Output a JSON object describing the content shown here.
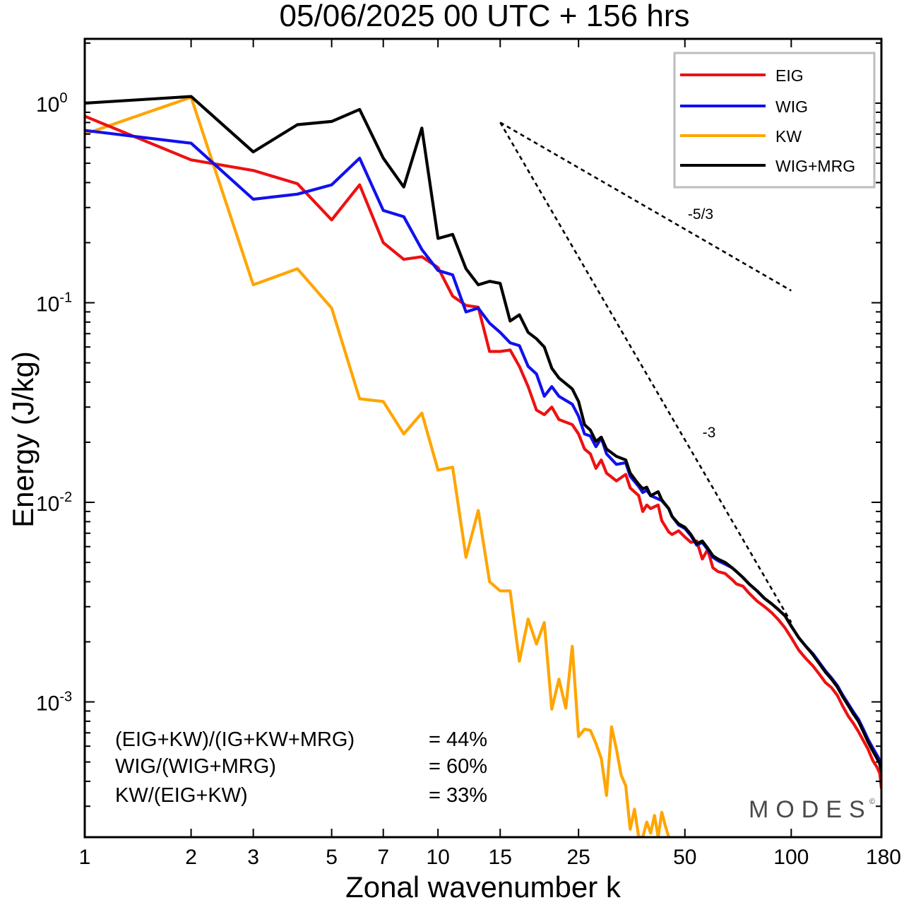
{
  "chart_data": {
    "type": "line",
    "title": "05/06/2025  00 UTC  + 156 hrs",
    "xlabel": "Zonal wavenumber k",
    "ylabel": "Energy (J/kg)",
    "x_scale": "log",
    "y_scale": "log",
    "xlim": [
      1,
      180
    ],
    "ylim": [
      0.00021,
      2.1
    ],
    "x_ticks": [
      {
        "value": 1,
        "label": "1"
      },
      {
        "value": 2,
        "label": "2"
      },
      {
        "value": 3,
        "label": "3"
      },
      {
        "value": 5,
        "label": "5"
      },
      {
        "value": 7,
        "label": "7"
      },
      {
        "value": 10,
        "label": "10"
      },
      {
        "value": 15,
        "label": "15"
      },
      {
        "value": 25,
        "label": "25"
      },
      {
        "value": 50,
        "label": "50"
      },
      {
        "value": 100,
        "label": "100"
      },
      {
        "value": 180,
        "label": "180"
      }
    ],
    "y_ticks": [
      {
        "value": 0.001,
        "base": "10",
        "exp": "-3"
      },
      {
        "value": 0.01,
        "base": "10",
        "exp": "-2"
      },
      {
        "value": 0.1,
        "base": "10",
        "exp": "-1"
      },
      {
        "value": 1,
        "base": "10",
        "exp": "0"
      }
    ],
    "grid": false,
    "legend_position": "top-right",
    "series": [
      {
        "name": "EIG",
        "color": "#ee1111",
        "points": [
          [
            1,
            0.86
          ],
          [
            2,
            0.52
          ],
          [
            3,
            0.46
          ],
          [
            4,
            0.395
          ],
          [
            5,
            0.26
          ],
          [
            6,
            0.39
          ],
          [
            7,
            0.2
          ],
          [
            8,
            0.165
          ],
          [
            9,
            0.17
          ],
          [
            10,
            0.15
          ],
          [
            11,
            0.108
          ],
          [
            12,
            0.097
          ],
          [
            13,
            0.095
          ],
          [
            14,
            0.057
          ],
          [
            15,
            0.057
          ],
          [
            16,
            0.058
          ],
          [
            17,
            0.048
          ],
          [
            18,
            0.038
          ],
          [
            19,
            0.029
          ],
          [
            20,
            0.0275
          ],
          [
            21,
            0.03
          ],
          [
            22,
            0.026
          ],
          [
            24,
            0.0245
          ],
          [
            25,
            0.022
          ],
          [
            26,
            0.0185
          ],
          [
            27,
            0.0175
          ],
          [
            28,
            0.0148
          ],
          [
            29,
            0.0163
          ],
          [
            30,
            0.014
          ],
          [
            32,
            0.0128
          ],
          [
            34,
            0.0138
          ],
          [
            35,
            0.0118
          ],
          [
            37,
            0.0108
          ],
          [
            38,
            0.009
          ],
          [
            39,
            0.0097
          ],
          [
            40,
            0.0093
          ],
          [
            42,
            0.0097
          ],
          [
            43,
            0.0081
          ],
          [
            45,
            0.0071
          ],
          [
            46,
            0.0069
          ],
          [
            48,
            0.0072
          ],
          [
            50,
            0.0067
          ],
          [
            52,
            0.0063
          ],
          [
            54,
            0.0064
          ],
          [
            56,
            0.0052
          ],
          [
            58,
            0.0058
          ],
          [
            60,
            0.0047
          ],
          [
            62,
            0.0045
          ],
          [
            65,
            0.0044
          ],
          [
            68,
            0.0041
          ],
          [
            70,
            0.0039
          ],
          [
            73,
            0.0038
          ],
          [
            76,
            0.0035
          ],
          [
            80,
            0.0032
          ],
          [
            84,
            0.003
          ],
          [
            88,
            0.0028
          ],
          [
            92,
            0.00258
          ],
          [
            96,
            0.00235
          ],
          [
            100,
            0.0021
          ],
          [
            105,
            0.00182
          ],
          [
            110,
            0.00165
          ],
          [
            115,
            0.00152
          ],
          [
            120,
            0.00138
          ],
          [
            125,
            0.00125
          ],
          [
            130,
            0.00118
          ],
          [
            135,
            0.00108
          ],
          [
            140,
            0.00095
          ],
          [
            145,
            0.00085
          ],
          [
            150,
            0.00078
          ],
          [
            155,
            0.00071
          ],
          [
            160,
            0.00064
          ],
          [
            165,
            0.00058
          ],
          [
            170,
            0.00051
          ],
          [
            175,
            0.00047
          ],
          [
            178,
            0.00044
          ],
          [
            180,
            0.00037
          ]
        ]
      },
      {
        "name": "WIG",
        "color": "#1111ee",
        "points": [
          [
            1,
            0.73
          ],
          [
            2,
            0.63
          ],
          [
            3,
            0.33
          ],
          [
            4,
            0.35
          ],
          [
            5,
            0.39
          ],
          [
            6,
            0.53
          ],
          [
            7,
            0.29
          ],
          [
            8,
            0.27
          ],
          [
            9,
            0.185
          ],
          [
            10,
            0.145
          ],
          [
            11,
            0.138
          ],
          [
            12,
            0.09
          ],
          [
            13,
            0.094
          ],
          [
            14,
            0.079
          ],
          [
            15,
            0.071
          ],
          [
            16,
            0.063
          ],
          [
            17,
            0.061
          ],
          [
            18,
            0.048
          ],
          [
            19,
            0.044
          ],
          [
            20,
            0.034
          ],
          [
            21,
            0.038
          ],
          [
            22,
            0.034
          ],
          [
            24,
            0.031
          ],
          [
            25,
            0.027
          ],
          [
            26,
            0.022
          ],
          [
            27,
            0.0215
          ],
          [
            28,
            0.019
          ],
          [
            29,
            0.021
          ],
          [
            30,
            0.0175
          ],
          [
            32,
            0.0155
          ],
          [
            34,
            0.0158
          ],
          [
            35,
            0.0135
          ],
          [
            37,
            0.012
          ],
          [
            38,
            0.0112
          ],
          [
            39,
            0.0115
          ],
          [
            40,
            0.0108
          ],
          [
            42,
            0.0104
          ],
          [
            43,
            0.0102
          ],
          [
            45,
            0.0093
          ],
          [
            46,
            0.0085
          ],
          [
            48,
            0.0077
          ],
          [
            50,
            0.0074
          ],
          [
            52,
            0.0068
          ],
          [
            54,
            0.0061
          ],
          [
            56,
            0.0063
          ],
          [
            58,
            0.0058
          ],
          [
            60,
            0.0053
          ],
          [
            62,
            0.0051
          ],
          [
            65,
            0.0049
          ],
          [
            68,
            0.0047
          ],
          [
            70,
            0.0045
          ],
          [
            73,
            0.0042
          ],
          [
            76,
            0.0039
          ],
          [
            80,
            0.0036
          ],
          [
            84,
            0.0033
          ],
          [
            88,
            0.0031
          ],
          [
            92,
            0.0029
          ],
          [
            96,
            0.0027
          ],
          [
            100,
            0.0024
          ],
          [
            105,
            0.0021
          ],
          [
            110,
            0.0019
          ],
          [
            115,
            0.00175
          ],
          [
            120,
            0.00158
          ],
          [
            125,
            0.00143
          ],
          [
            130,
            0.00132
          ],
          [
            135,
            0.00121
          ],
          [
            140,
            0.00108
          ],
          [
            145,
            0.00098
          ],
          [
            150,
            0.00089
          ],
          [
            155,
            0.00082
          ],
          [
            160,
            0.00073
          ],
          [
            165,
            0.00065
          ],
          [
            170,
            0.00059
          ],
          [
            175,
            0.00054
          ],
          [
            178,
            0.00051
          ],
          [
            180,
            0.00047
          ]
        ]
      },
      {
        "name": "KW",
        "color": "#ffa500",
        "points": [
          [
            1,
            0.7
          ],
          [
            2,
            1.07
          ],
          [
            3,
            0.123
          ],
          [
            4,
            0.148
          ],
          [
            5,
            0.094
          ],
          [
            6,
            0.033
          ],
          [
            7,
            0.032
          ],
          [
            8,
            0.022
          ],
          [
            9,
            0.028
          ],
          [
            10,
            0.0145
          ],
          [
            11,
            0.015
          ],
          [
            12,
            0.0053
          ],
          [
            13,
            0.0091
          ],
          [
            14,
            0.004
          ],
          [
            15,
            0.0036
          ],
          [
            16,
            0.0036
          ],
          [
            17,
            0.0016
          ],
          [
            18,
            0.0026
          ],
          [
            19,
            0.00195
          ],
          [
            20,
            0.0025
          ],
          [
            21,
            0.00092
          ],
          [
            22,
            0.0013
          ],
          [
            23,
            0.00093
          ],
          [
            24,
            0.0019
          ],
          [
            25,
            0.00067
          ],
          [
            26,
            0.00073
          ],
          [
            27,
            0.00072
          ],
          [
            28,
            0.00062
          ],
          [
            29,
            0.00052
          ],
          [
            30,
            0.00034
          ],
          [
            31,
            0.00075
          ],
          [
            32,
            0.00058
          ],
          [
            33,
            0.00043
          ],
          [
            34,
            0.00038
          ],
          [
            35,
            0.00023
          ],
          [
            36,
            0.00029
          ],
          [
            37,
            0.00021
          ],
          [
            38,
            0.00021
          ],
          [
            39,
            0.00025
          ],
          [
            40,
            0.00022
          ],
          [
            41,
            0.00027
          ],
          [
            42,
            0.00021
          ],
          [
            43,
            0.00028
          ],
          [
            44,
            0.00024
          ],
          [
            45,
            0.00021
          ]
        ]
      },
      {
        "name": "WIG+MRG",
        "color": "#000000",
        "points": [
          [
            1,
            1.0
          ],
          [
            2,
            1.08
          ],
          [
            3,
            0.57
          ],
          [
            4,
            0.78
          ],
          [
            5,
            0.81
          ],
          [
            6,
            0.93
          ],
          [
            7,
            0.53
          ],
          [
            8,
            0.38
          ],
          [
            9,
            0.75
          ],
          [
            10,
            0.21
          ],
          [
            11,
            0.22
          ],
          [
            12,
            0.148
          ],
          [
            13,
            0.123
          ],
          [
            14,
            0.128
          ],
          [
            15,
            0.125
          ],
          [
            16,
            0.081
          ],
          [
            17,
            0.087
          ],
          [
            18,
            0.071
          ],
          [
            19,
            0.066
          ],
          [
            20,
            0.06
          ],
          [
            21,
            0.047
          ],
          [
            22,
            0.042
          ],
          [
            24,
            0.037
          ],
          [
            25,
            0.032
          ],
          [
            26,
            0.0245
          ],
          [
            27,
            0.023
          ],
          [
            28,
            0.0202
          ],
          [
            29,
            0.0212
          ],
          [
            30,
            0.0185
          ],
          [
            32,
            0.017
          ],
          [
            34,
            0.0163
          ],
          [
            35,
            0.014
          ],
          [
            37,
            0.0123
          ],
          [
            38,
            0.0117
          ],
          [
            39,
            0.0119
          ],
          [
            40,
            0.0108
          ],
          [
            42,
            0.0113
          ],
          [
            43,
            0.0103
          ],
          [
            45,
            0.0093
          ],
          [
            46,
            0.0085
          ],
          [
            48,
            0.0078
          ],
          [
            50,
            0.0075
          ],
          [
            52,
            0.0069
          ],
          [
            54,
            0.0062
          ],
          [
            56,
            0.0064
          ],
          [
            58,
            0.0059
          ],
          [
            60,
            0.0054
          ],
          [
            62,
            0.0052
          ],
          [
            65,
            0.005
          ],
          [
            68,
            0.0047
          ],
          [
            70,
            0.0045
          ],
          [
            73,
            0.0042
          ],
          [
            76,
            0.0039
          ],
          [
            80,
            0.0036
          ],
          [
            84,
            0.0033
          ],
          [
            88,
            0.0031
          ],
          [
            92,
            0.0029
          ],
          [
            96,
            0.0027
          ],
          [
            100,
            0.0024
          ],
          [
            105,
            0.0021
          ],
          [
            110,
            0.0019
          ],
          [
            115,
            0.00173
          ],
          [
            120,
            0.00156
          ],
          [
            125,
            0.00141
          ],
          [
            130,
            0.0013
          ],
          [
            135,
            0.00119
          ],
          [
            140,
            0.00106
          ],
          [
            145,
            0.00096
          ],
          [
            150,
            0.00087
          ],
          [
            155,
            0.0008
          ],
          [
            160,
            0.00071
          ],
          [
            165,
            0.00063
          ],
          [
            170,
            0.00057
          ],
          [
            175,
            0.00052
          ],
          [
            178,
            0.00049
          ],
          [
            180,
            0.00045
          ]
        ]
      }
    ],
    "reference_slopes": [
      {
        "label": "-5/3",
        "from": [
          15,
          0.8
        ],
        "to": [
          100,
          0.115
        ]
      },
      {
        "label": "-3",
        "from": [
          15,
          0.8
        ],
        "to": [
          100,
          0.0025
        ]
      }
    ],
    "annotations": [
      {
        "name": "EIG+KW / IG+KW+MRG",
        "text": "(EIG+KW)/(IG+KW+MRG)",
        "value": "= 44%"
      },
      {
        "name": "WIG / WIG+MRG",
        "text": "WIG/(WIG+MRG)",
        "value": "= 60%"
      },
      {
        "name": "KW / EIG+KW",
        "text": "KW/(EIG+KW)",
        "value": "= 33%"
      }
    ]
  },
  "watermark": {
    "text": "MODES",
    "mark": "©"
  }
}
